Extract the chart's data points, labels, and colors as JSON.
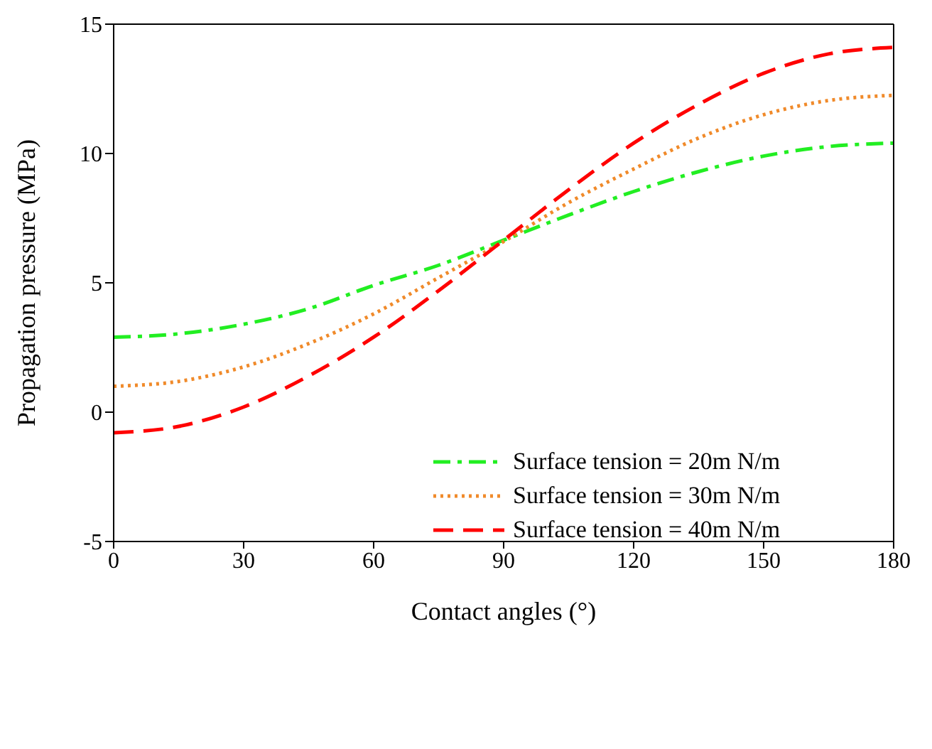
{
  "chart_data": {
    "type": "line",
    "xlabel": "Contact angles (°)",
    "ylabel": "Propagation pressure (MPa)",
    "x": [
      0,
      15,
      30,
      45,
      60,
      75,
      90,
      105,
      120,
      135,
      150,
      165,
      180
    ],
    "series": [
      {
        "name": "Surface tension = 20m N/m",
        "color": "#22ee22",
        "line_style": "dashdot",
        "values": [
          2.9,
          3.03,
          3.4,
          4.0,
          4.9,
          5.68,
          6.65,
          7.62,
          8.53,
          9.3,
          9.9,
          10.27,
          10.4
        ]
      },
      {
        "name": "Surface tension = 30m N/m",
        "color": "#f08a2a",
        "line_style": "dotted",
        "values": [
          1.0,
          1.19,
          1.75,
          2.65,
          3.8,
          5.2,
          6.6,
          8.1,
          9.4,
          10.6,
          11.5,
          12.05,
          12.25
        ]
      },
      {
        "name": "Surface tension = 40m N/m",
        "color": "#ff0000",
        "line_style": "dashed",
        "values": [
          -0.8,
          -0.55,
          0.2,
          1.4,
          2.9,
          4.7,
          6.65,
          8.6,
          10.4,
          11.9,
          13.1,
          13.85,
          14.1
        ]
      }
    ],
    "xlim": [
      0,
      180
    ],
    "xticks": [
      0,
      30,
      60,
      90,
      120,
      150,
      180
    ],
    "ylim": [
      -5,
      15
    ],
    "yticks": [
      -5,
      0,
      5,
      10,
      15
    ],
    "grid": false,
    "legend": "bottom right",
    "marker": "none"
  }
}
